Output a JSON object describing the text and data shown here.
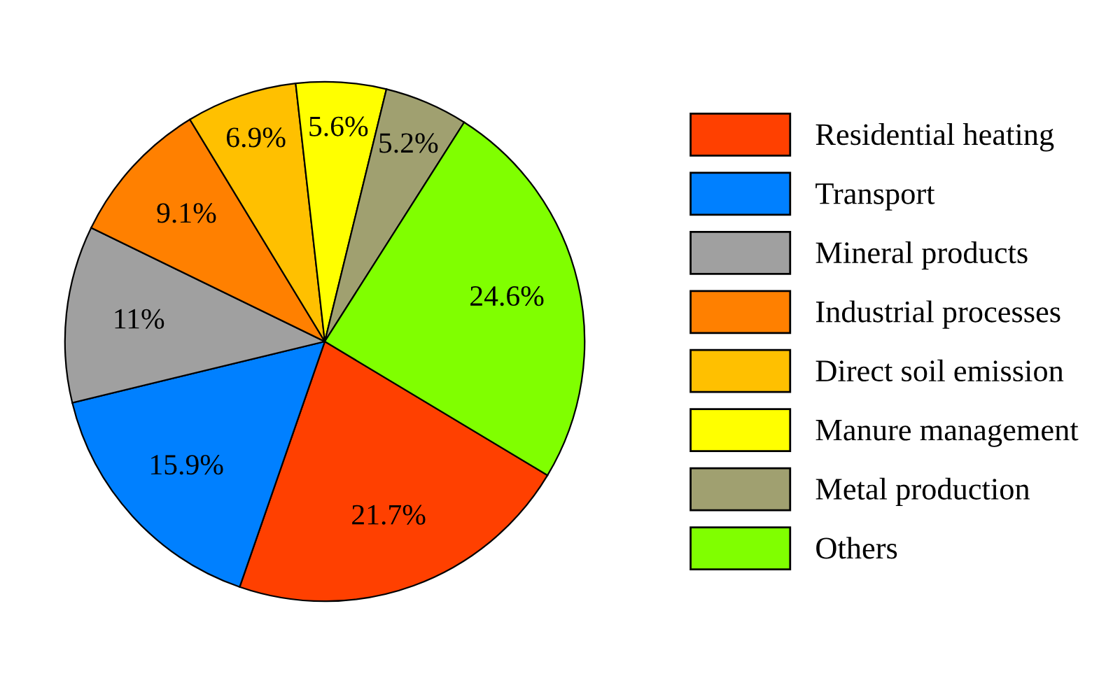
{
  "chart_data": {
    "type": "pie",
    "categories": [
      "Residential heating",
      "Transport",
      "Mineral products",
      "Industrial processes",
      "Direct soil emission",
      "Manure management",
      "Metal production",
      "Others"
    ],
    "values": [
      21.7,
      15.9,
      11,
      9.1,
      6.9,
      5.6,
      5.2,
      24.6
    ],
    "value_labels": [
      "21.7%",
      "15.9%",
      "11%",
      "9.1%",
      "6.9%",
      "5.6%",
      "5.2%",
      "24.6%"
    ],
    "colors": [
      "#ff4000",
      "#0080ff",
      "#a0a0a0",
      "#ff8000",
      "#ffc000",
      "#ffff00",
      "#a0a070",
      "#80ff00"
    ],
    "legend": "right"
  }
}
